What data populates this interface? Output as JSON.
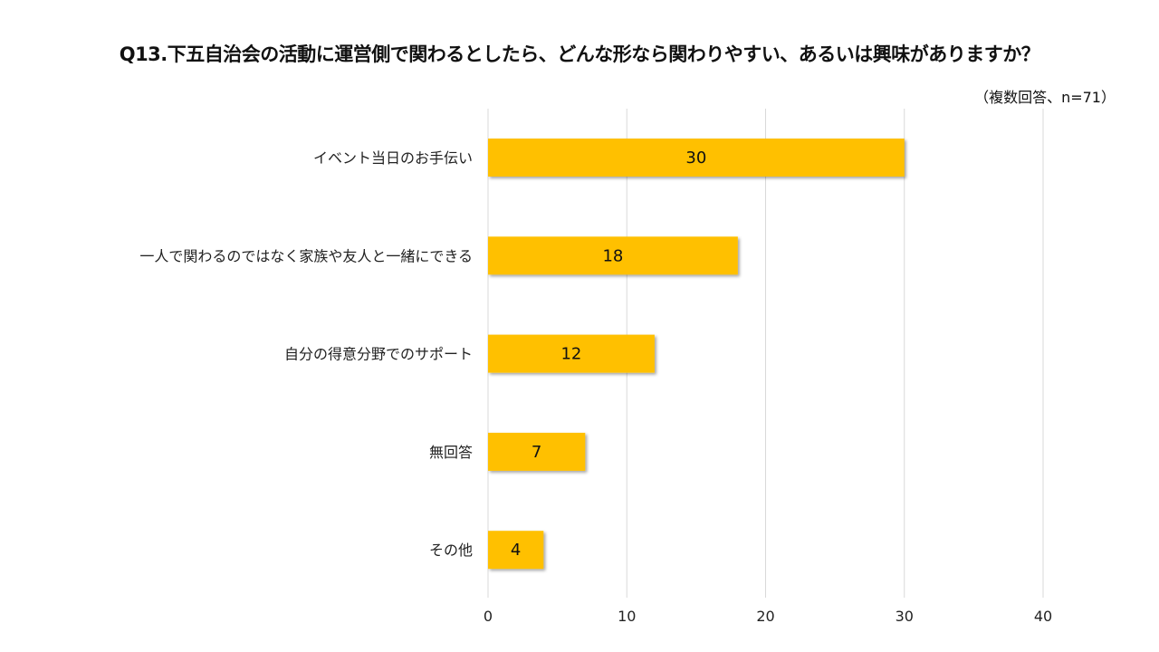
{
  "chart_data": {
    "type": "bar",
    "orientation": "horizontal",
    "title": "Q13.下五自治会の活動に運営側で関わるとしたら、どんな形なら関わりやすい、あるいは興味がありますか？",
    "subtitle": "（複数回答、n=71）",
    "categories": [
      "イベント当日のお手伝い",
      "一人で関わるのではなく家族や友人と一緒にできる",
      "自分の得意分野でのサポート",
      "無回答",
      "その他"
    ],
    "values": [
      30,
      18,
      12,
      7,
      4
    ],
    "xlim": [
      0,
      40
    ],
    "xticks": [
      "0",
      "10",
      "20",
      "30",
      "40"
    ],
    "xlabel": "",
    "ylabel": "",
    "grid": true,
    "legend": "none",
    "bar_color": "#FFC000"
  }
}
